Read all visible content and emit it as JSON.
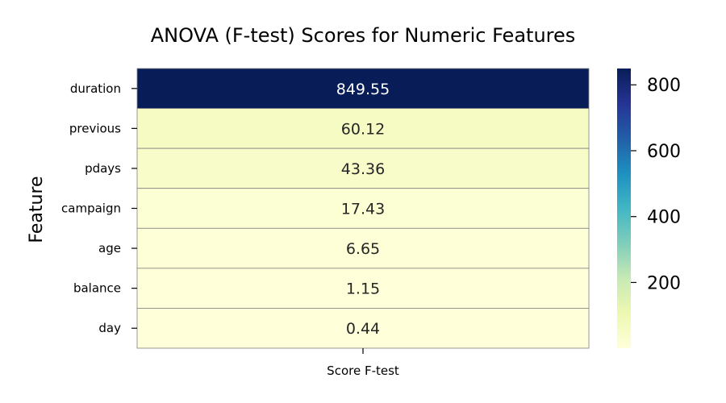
{
  "chart_data": {
    "type": "heatmap",
    "title": "ANOVA (F-test) Scores for Numeric Features",
    "xlabel": "",
    "ylabel": "Feature",
    "x_categories": [
      "Score F-test"
    ],
    "y_categories": [
      "duration",
      "previous",
      "pdays",
      "campaign",
      "age",
      "balance",
      "day"
    ],
    "values": [
      849.55,
      60.12,
      43.36,
      17.43,
      6.65,
      1.15,
      0.44
    ],
    "value_labels": [
      "849.55",
      "60.12",
      "43.36",
      "17.43",
      "6.65",
      "1.15",
      "0.44"
    ],
    "colormap": "YlGnBu",
    "vmin": 0.44,
    "vmax": 849.55,
    "colorbar_ticks": [
      200,
      400,
      600,
      800
    ],
    "colorbar_tick_labels": [
      "200",
      "400",
      "600",
      "800"
    ],
    "cell_border_color": "#808080"
  }
}
